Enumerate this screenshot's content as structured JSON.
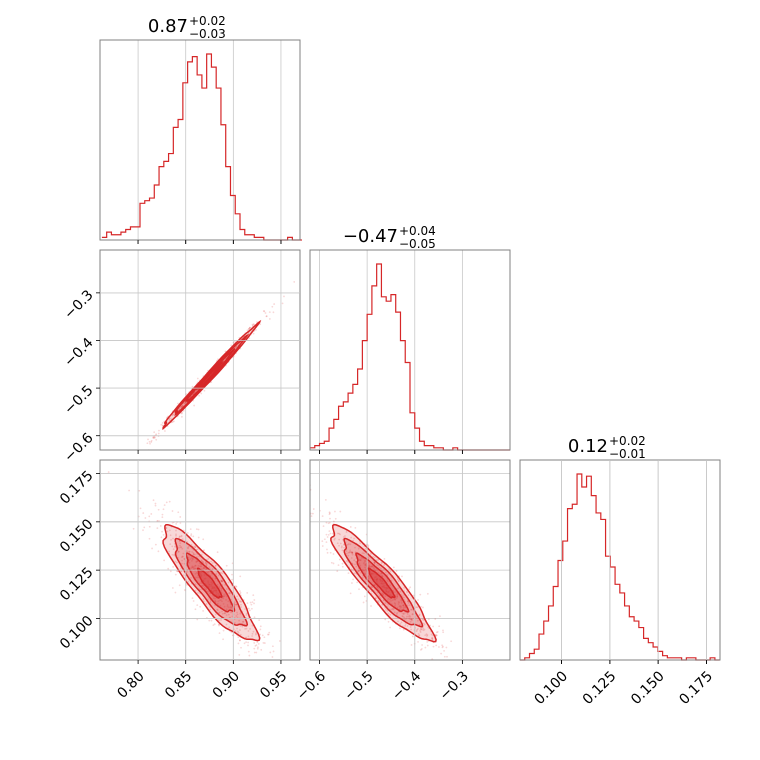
{
  "colors": {
    "accent": "#d62728",
    "frame": "#808080",
    "grid": "#c8c8c8",
    "background": "#ffffff"
  },
  "chart_data": {
    "type": "corner",
    "grid": true,
    "panels": [
      {
        "id": "hist-p1",
        "type": "histogram",
        "title": {
          "median": "0.87",
          "upper": "+0.02",
          "lower": "−0.03"
        },
        "xlim": [
          0.76,
          0.97
        ],
        "x_ticks": [
          0.8,
          0.85,
          0.9,
          0.95
        ],
        "x_ticklabels": [
          "0.80",
          "0.85",
          "0.90",
          "0.95"
        ],
        "bin_start": 0.762,
        "bin_width": 0.005,
        "counts": [
          1,
          3,
          2,
          2,
          3,
          4,
          5,
          5,
          14,
          15,
          16,
          21,
          28,
          30,
          33,
          43,
          46,
          60,
          68,
          70,
          63,
          58,
          71,
          66,
          58,
          44,
          28,
          17,
          10,
          4,
          2,
          2,
          1,
          1,
          0,
          0,
          0,
          0,
          0,
          1,
          0,
          0
        ]
      },
      {
        "id": "hist-p2",
        "type": "histogram",
        "title": {
          "median": "−0.47",
          "upper": "+0.04",
          "lower": "−0.05"
        },
        "xlim": [
          -0.62,
          -0.2
        ],
        "x_ticks": [
          -0.6,
          -0.5,
          -0.4,
          -0.3
        ],
        "x_ticklabels": [
          "−0.6",
          "−0.5",
          "−0.4",
          "−0.3"
        ],
        "bin_start": -0.62,
        "bin_width": 0.01,
        "counts": [
          1,
          2,
          3,
          4,
          10,
          14,
          20,
          22,
          26,
          30,
          37,
          50,
          62,
          75,
          85,
          70,
          68,
          71,
          63,
          50,
          40,
          17,
          10,
          4,
          2,
          2,
          1,
          1,
          0,
          0,
          1,
          0,
          0,
          0,
          0,
          0,
          0,
          0,
          0,
          0,
          0,
          0
        ]
      },
      {
        "id": "hist-p3",
        "type": "histogram",
        "title": {
          "median": "0.12",
          "upper": "+0.02",
          "lower": "−0.01"
        },
        "xlim": [
          0.0785,
          0.182
        ],
        "x_ticks": [
          0.1,
          0.125,
          0.15,
          0.175
        ],
        "x_ticklabels": [
          "0.100",
          "0.125",
          "0.150",
          "0.175"
        ],
        "bin_start": 0.0785,
        "bin_width": 0.00246,
        "counts": [
          0,
          1,
          3,
          5,
          12,
          18,
          25,
          34,
          46,
          55,
          70,
          72,
          86,
          80,
          85,
          76,
          68,
          65,
          48,
          43,
          35,
          31,
          25,
          20,
          18,
          15,
          10,
          8,
          6,
          4,
          2,
          1,
          1,
          1,
          0,
          1,
          1,
          0,
          0,
          0,
          1,
          0
        ]
      },
      {
        "id": "scatter-p1-p2",
        "type": "scatter-contour",
        "xlim": [
          0.76,
          0.97
        ],
        "ylim": [
          -0.63,
          -0.21
        ],
        "y_ticks": [
          -0.6,
          -0.5,
          -0.4,
          -0.3
        ],
        "y_ticklabels": [
          "−0.6",
          "−0.5",
          "−0.4",
          "−0.3"
        ],
        "center": [
          0.875,
          -0.475
        ],
        "cov": [
          [
            0.0006,
            0.0013
          ],
          [
            0.0013,
            0.00285
          ]
        ]
      },
      {
        "id": "scatter-p1-p3",
        "type": "scatter-contour",
        "xlim": [
          0.76,
          0.97
        ],
        "ylim": [
          0.0785,
          0.182
        ],
        "y_ticks": [
          0.1,
          0.125,
          0.15,
          0.175
        ],
        "y_ticklabels": [
          "0.100",
          "0.125",
          "0.150",
          "0.175"
        ],
        "center": [
          0.875,
          0.118
        ],
        "cov": [
          [
            0.0006,
            -0.00032
          ],
          [
            -0.00032,
            0.00022
          ]
        ]
      },
      {
        "id": "scatter-p2-p3",
        "type": "scatter-contour",
        "xlim": [
          -0.62,
          -0.2
        ],
        "ylim": [
          0.0785,
          0.182
        ],
        "center": [
          -0.47,
          0.118
        ],
        "cov": [
          [
            0.00285,
            -0.00072
          ],
          [
            -0.00072,
            0.00022
          ]
        ]
      }
    ],
    "contour_levels_sigma": [
      0.5,
      1.0,
      1.5,
      2.0
    ]
  }
}
